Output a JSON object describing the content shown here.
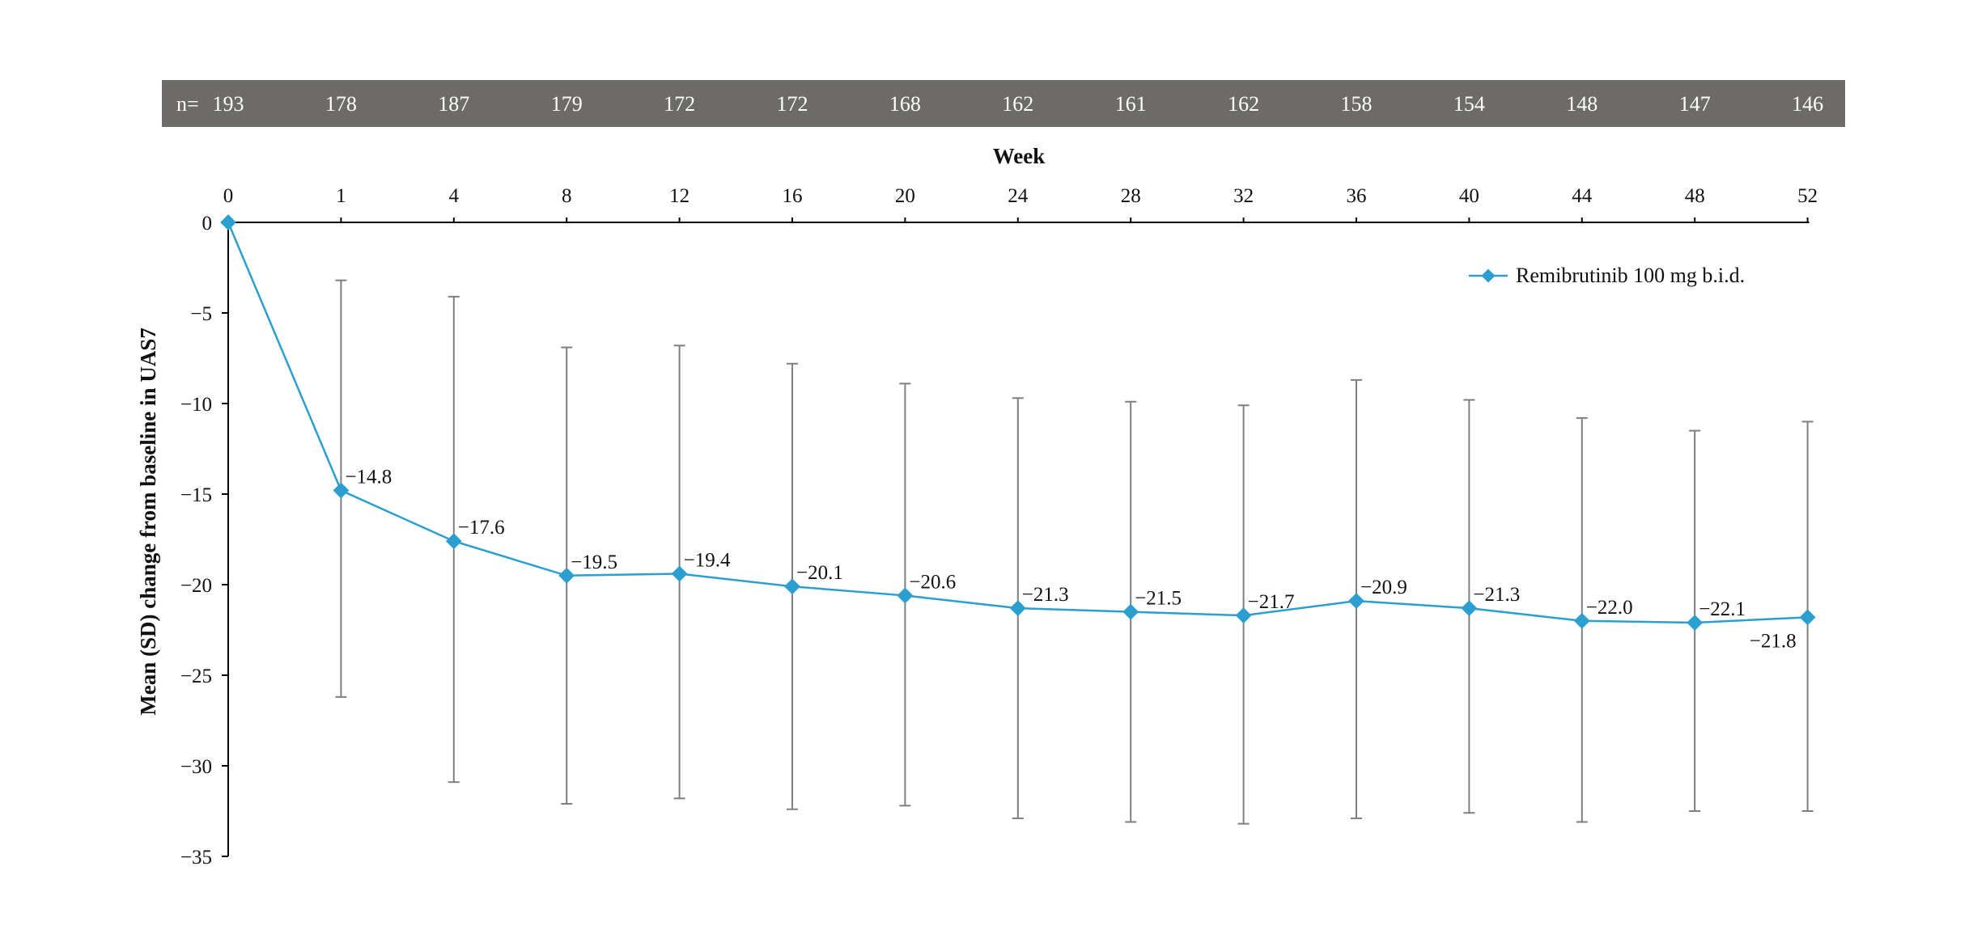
{
  "chart_data": {
    "type": "line",
    "n_prefix": "n=",
    "n_values": [
      "193",
      "178",
      "187",
      "179",
      "172",
      "172",
      "168",
      "162",
      "161",
      "162",
      "158",
      "154",
      "148",
      "147",
      "146"
    ],
    "xlabel": "Week",
    "ylabel": "Mean (SD) change from baseline in UAS7",
    "x": [
      0,
      1,
      4,
      8,
      12,
      16,
      20,
      24,
      28,
      32,
      36,
      40,
      44,
      48,
      52
    ],
    "x_tick_labels": [
      "0",
      "1",
      "4",
      "8",
      "12",
      "16",
      "20",
      "24",
      "28",
      "32",
      "36",
      "40",
      "44",
      "48",
      "52"
    ],
    "y_tick_labels": [
      "0",
      "−5",
      "−10",
      "−15",
      "−20",
      "−25",
      "−30",
      "−35"
    ],
    "ylim": [
      -35,
      0
    ],
    "series": [
      {
        "name": "Remibrutinib 100 mg b.i.d.",
        "color": "#2a9fd0",
        "values": [
          0,
          -14.8,
          -17.6,
          -19.5,
          -19.4,
          -20.1,
          -20.6,
          -21.3,
          -21.5,
          -21.7,
          -20.9,
          -21.3,
          -22.0,
          -22.1,
          -21.8
        ],
        "value_labels": [
          "",
          "−14.8",
          "−17.6",
          "−19.5",
          "−19.4",
          "−20.1",
          "−20.6",
          "−21.3",
          "−21.5",
          "−21.7",
          "−20.9",
          "−21.3",
          "−22.0",
          "−22.1",
          "−21.8"
        ],
        "err_upper": [
          null,
          -3.2,
          -4.1,
          -6.9,
          -6.8,
          -7.8,
          -8.9,
          -9.7,
          -9.9,
          -10.1,
          -8.7,
          -9.8,
          -10.8,
          -11.5,
          -11.0
        ],
        "err_lower": [
          null,
          -26.2,
          -30.9,
          -32.1,
          -31.8,
          -32.4,
          -32.2,
          -32.9,
          -33.1,
          -33.2,
          -32.9,
          -32.6,
          -33.1,
          -32.5,
          -32.5
        ]
      }
    ],
    "legend_position": "top-right",
    "grid": false,
    "header_band_color": "#6d6b68",
    "errorbar_color": "#7f7f7f"
  }
}
